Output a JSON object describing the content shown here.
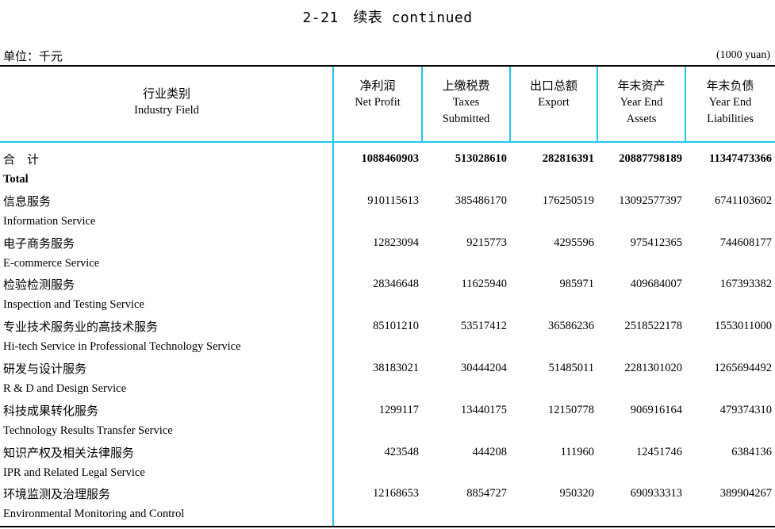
{
  "title": "2-21　续表 continued",
  "unit_cn": "单位：千元",
  "unit_en": "(1000 yuan)",
  "columns": [
    {
      "cn": "行业类别",
      "en1": "Industry Field",
      "en2": ""
    },
    {
      "cn": "净利润",
      "en1": "Net Profit",
      "en2": ""
    },
    {
      "cn": "上缴税费",
      "en1": "Taxes",
      "en2": "Submitted"
    },
    {
      "cn": "出口总额",
      "en1": "Export",
      "en2": ""
    },
    {
      "cn": "年末资产",
      "en1": "Year End",
      "en2": "Assets"
    },
    {
      "cn": "年末负债",
      "en1": "Year End",
      "en2": "Liabilities"
    }
  ],
  "rows": [
    {
      "cn": "合　计",
      "en": "Total",
      "values": [
        "1088460903",
        "513028610",
        "282816391",
        "20887798189",
        "11347473366"
      ]
    },
    {
      "cn": "信息服务",
      "en": "Information Service",
      "values": [
        "910115613",
        "385486170",
        "176250519",
        "13092577397",
        "6741103602"
      ]
    },
    {
      "cn": "电子商务服务",
      "en": "E-commerce Service",
      "values": [
        "12823094",
        "9215773",
        "4295596",
        "975412365",
        "744608177"
      ]
    },
    {
      "cn": "检验检测服务",
      "en": "Inspection and Testing Service",
      "values": [
        "28346648",
        "11625940",
        "985971",
        "409684007",
        "167393382"
      ]
    },
    {
      "cn": "专业技术服务业的高技术服务",
      "en": "Hi-tech Service in Professional Technology Service",
      "values": [
        "85101210",
        "53517412",
        "36586236",
        "2518522178",
        "1553011000"
      ]
    },
    {
      "cn": "研发与设计服务",
      "en": "R & D and Design Service",
      "values": [
        "38183021",
        "30444204",
        "51485011",
        "2281301020",
        "1265694492"
      ]
    },
    {
      "cn": "科技成果转化服务",
      "en": "Technology Results Transfer Service",
      "values": [
        "1299117",
        "13440175",
        "12150778",
        "906916164",
        "479374310"
      ]
    },
    {
      "cn": "知识产权及相关法律服务",
      "en": "IPR and Related Legal Service",
      "values": [
        "423548",
        "444208",
        "111960",
        "12451746",
        "6384136"
      ]
    },
    {
      "cn": "环境监测及治理服务",
      "en": "Environmental Monitoring and Control",
      "values": [
        "12168653",
        "8854727",
        "950320",
        "690933313",
        "389904267"
      ]
    }
  ]
}
